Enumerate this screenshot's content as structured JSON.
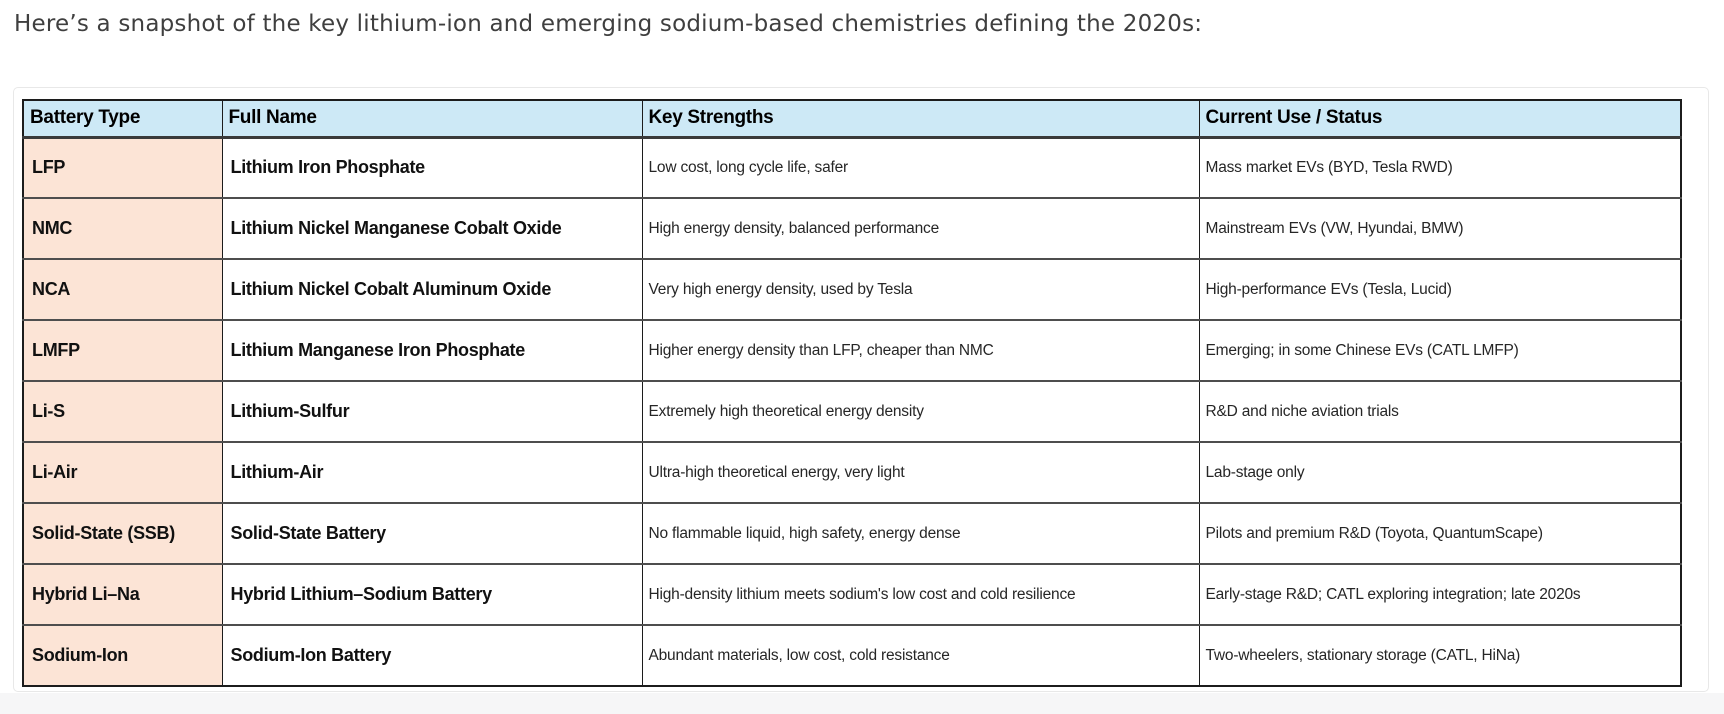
{
  "heading": "Here’s a snapshot of the key lithium-ion and emerging sodium-based chemistries defining the 2020s:",
  "table": {
    "columns": [
      "Battery Type",
      "Full Name",
      "Key Strengths",
      "Current Use / Status"
    ],
    "rows": [
      {
        "type": "LFP",
        "full_name": "Lithium Iron Phosphate",
        "strengths": "Low cost, long cycle life, safer",
        "status": "Mass market EVs (BYD, Tesla RWD)"
      },
      {
        "type": "NMC",
        "full_name": "Lithium Nickel Manganese Cobalt Oxide",
        "strengths": "High energy density, balanced performance",
        "status": "Mainstream EVs (VW, Hyundai, BMW)"
      },
      {
        "type": "NCA",
        "full_name": "Lithium Nickel Cobalt Aluminum Oxide",
        "strengths": "Very high energy density, used by Tesla",
        "status": "High-performance EVs (Tesla, Lucid)"
      },
      {
        "type": "LMFP",
        "full_name": "Lithium Manganese Iron Phosphate",
        "strengths": "Higher energy density than LFP, cheaper than NMC",
        "status": "Emerging; in some Chinese EVs (CATL LMFP)"
      },
      {
        "type": "Li-S",
        "full_name": "Lithium-Sulfur",
        "strengths": "Extremely high theoretical energy density",
        "status": "R&D and niche aviation trials"
      },
      {
        "type": "Li-Air",
        "full_name": "Lithium-Air",
        "strengths": "Ultra-high theoretical energy, very light",
        "status": "Lab-stage only"
      },
      {
        "type": "Solid-State (SSB)",
        "full_name": "Solid-State Battery",
        "strengths": "No flammable liquid, high safety, energy dense",
        "status": "Pilots and premium R&D (Toyota, QuantumScape)"
      },
      {
        "type": "Hybrid Li–Na",
        "full_name": "Hybrid Lithium–Sodium Battery",
        "strengths": "High-density lithium meets sodium's low cost and cold resilience",
        "status": "Early-stage R&D; CATL exploring integration;  late 2020s"
      },
      {
        "type": "Sodium-Ion",
        "full_name": "Sodium-Ion Battery",
        "strengths": "Abundant materials, low cost, cold resistance",
        "status": "Two-wheelers, stationary storage (CATL, HiNa)"
      }
    ]
  },
  "colors": {
    "header_bg": "#cde9f6",
    "type_col_bg": "#fce4d6",
    "outer_border": "#1c1c1c",
    "row_divider": "#4e4e4e",
    "card_border": "#e8e8e8",
    "bottom_strip_bg": "#f6f6f7"
  }
}
